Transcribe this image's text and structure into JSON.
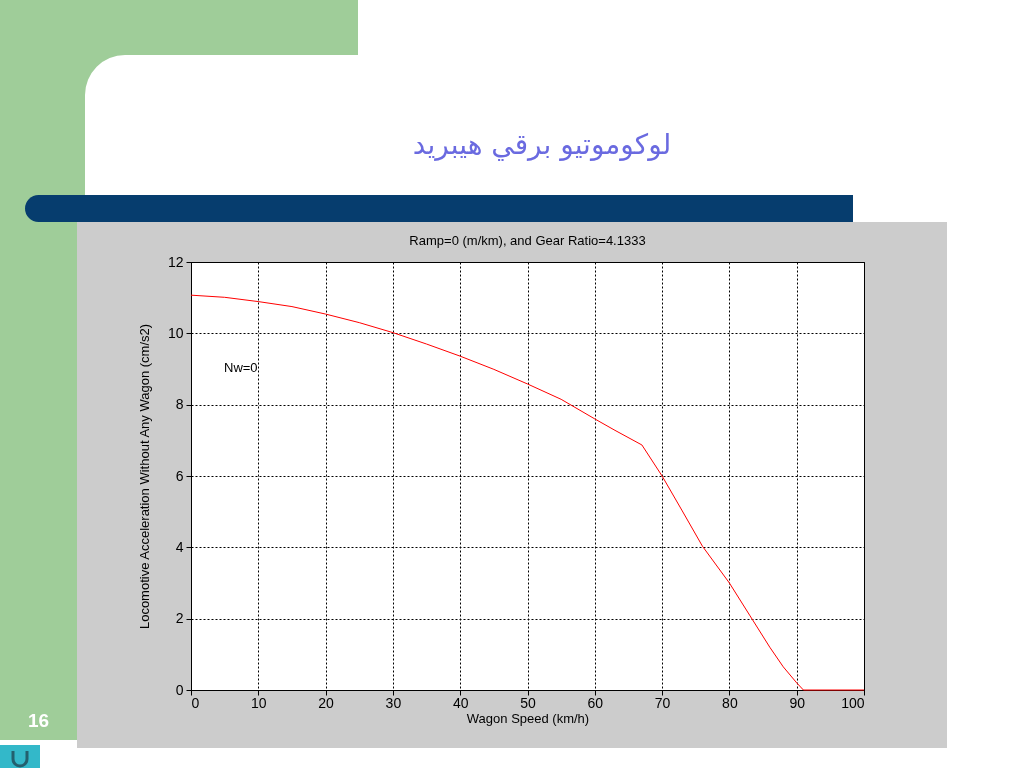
{
  "chart_data": {
    "type": "line",
    "title": "لوکوموتیو برقي هيبريد",
    "subtitle": "Ramp=0 (m/km), and Gear Ratio=4.1333",
    "xlabel": "Wagon Speed (km/h)",
    "ylabel": "Locomotive Acceleration Without Any Wagon (cm/s2)",
    "annotations": [
      "Nw=0",
      "16"
    ],
    "x": [
      0,
      5,
      10,
      15,
      20,
      25,
      30,
      35,
      40,
      45,
      50,
      55,
      60,
      63,
      67,
      70,
      73,
      76,
      80,
      83,
      86,
      88,
      90,
      91,
      100
    ],
    "series": [
      {
        "color": "#ff0000",
        "values": [
          11.07,
          11.01,
          10.89,
          10.75,
          10.54,
          10.3,
          10.02,
          9.7,
          9.36,
          8.99,
          8.58,
          8.15,
          7.6,
          7.28,
          6.87,
          6.0,
          5.02,
          4.03,
          3.0,
          2.1,
          1.2,
          0.65,
          0.2,
          0,
          0
        ]
      }
    ],
    "xlim": [
      0,
      100
    ],
    "ylim": [
      0,
      12
    ],
    "xticks": [
      0,
      10,
      20,
      30,
      40,
      50,
      60,
      70,
      80,
      90,
      100
    ],
    "yticks": [
      0,
      2,
      4,
      6,
      8,
      10,
      12
    ],
    "grid": true
  }
}
